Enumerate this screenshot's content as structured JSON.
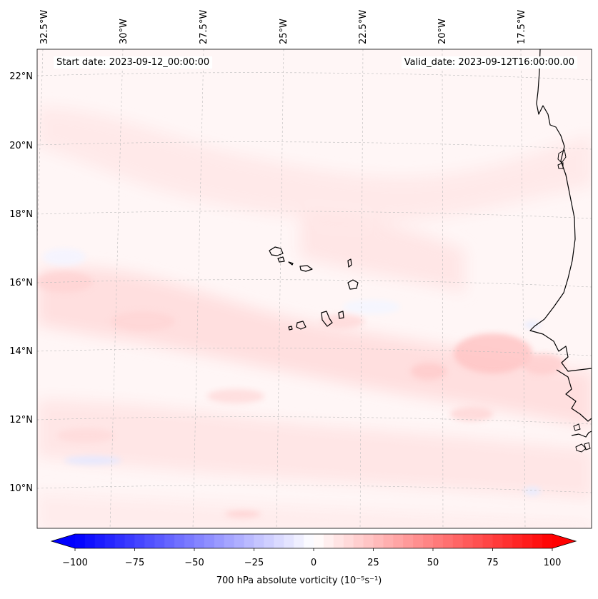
{
  "map": {
    "start_date": "Start date: 2023-09-12_00:00:00",
    "valid_date": "Valid_date: 2023-09-12T16:00:00.00",
    "longitude_labels": [
      "32.5°W",
      "30°W",
      "27.5°W",
      "25°W",
      "22.5°W",
      "20°W",
      "17.5°W"
    ],
    "latitude_labels": [
      "22°N",
      "20°N",
      "18°N",
      "16°N",
      "14°N",
      "12°N",
      "10°N"
    ],
    "field_name": "700 hPa absolute vorticity"
  },
  "colorbar": {
    "label": "700 hPa absolute vorticity (10⁻⁵s⁻¹)",
    "ticks": [
      "−100",
      "−75",
      "−50",
      "−25",
      "0",
      "25",
      "50",
      "75",
      "100"
    ],
    "min": -100,
    "max": 100,
    "levels": 48,
    "color_low": "#0000ff",
    "color_mid": "#ffffff",
    "color_high": "#ff0000"
  }
}
